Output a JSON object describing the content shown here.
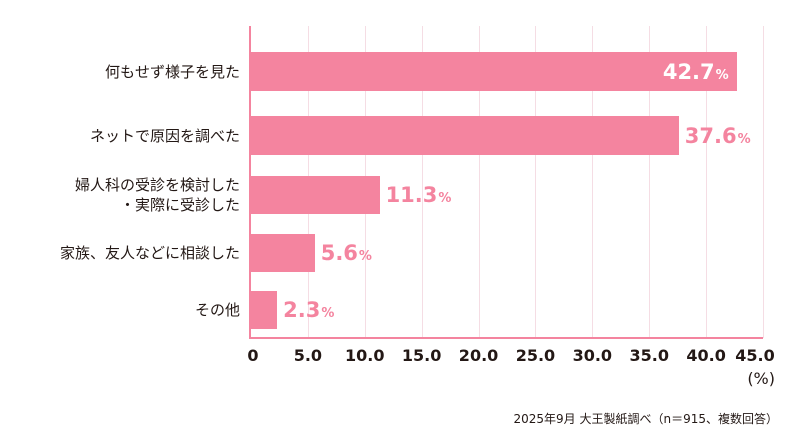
{
  "chart_data": {
    "type": "bar",
    "orientation": "horizontal",
    "title": "",
    "categories": [
      "何もせず様子を見た",
      "ネットで原因を調べた",
      "婦人科の受診を検討した・実際に受診した",
      "家族、友人などに相談した",
      "その他"
    ],
    "category_lines": [
      [
        "何もせず様子を見た"
      ],
      [
        "ネットで原因を調べた"
      ],
      [
        "婦人科の受診を検討した",
        "・実際に受診した"
      ],
      [
        "家族、友人などに相談した"
      ],
      [
        "その他"
      ]
    ],
    "values": [
      42.7,
      37.6,
      11.3,
      5.6,
      2.3
    ],
    "value_labels": [
      "42.7",
      "37.6",
      "11.3",
      "5.6",
      "2.3"
    ],
    "value_suffix": "%",
    "xlabel": "(%)",
    "ylabel": "",
    "xlim": [
      0,
      45
    ],
    "xticks": [
      "0",
      "5.0",
      "10.0",
      "15.0",
      "20.0",
      "25.0",
      "30.0",
      "35.0",
      "40.0",
      "45.0"
    ],
    "grid": true,
    "legend": null,
    "bar_color": "#f4849f",
    "grid_color": "#f5dde4",
    "source": "2025年9月 大王製紙調べ（n＝915、複数回答）"
  }
}
